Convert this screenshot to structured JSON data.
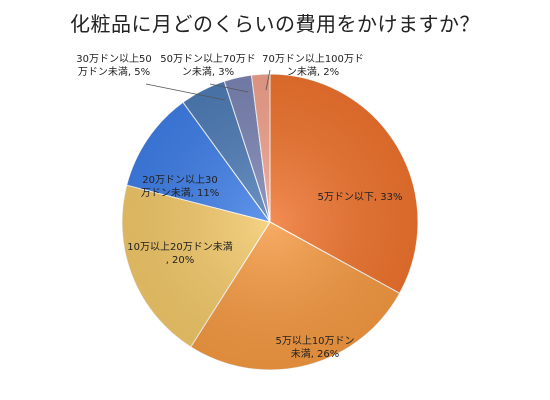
{
  "chart_data": {
    "type": "pie",
    "title": "化粧品に月どのくらいの費用をかけますか？",
    "slices": [
      {
        "label": "5万ドン以下",
        "value": 33,
        "value_label": "33%",
        "color": "#f0742e"
      },
      {
        "label": "5万以上10万ドン未満",
        "value": 26,
        "value_label": "26%",
        "color": "#f69a42"
      },
      {
        "label": "10万以上20万ドン未満",
        "value": 20,
        "value_label": "20%",
        "color": "#f3c96a"
      },
      {
        "label": "20万ドン以上30万ドン未満",
        "value": 11,
        "value_label": "11%",
        "color": "#3f7fe8"
      },
      {
        "label": "30万ドン以上50万ドン未満",
        "value": 5,
        "value_label": "5%",
        "color": "#4f7db8"
      },
      {
        "label": "50万ドン以上70万ドン未満",
        "value": 3,
        "value_label": "3%",
        "color": "#7c86b5"
      },
      {
        "label": "70万ドン以上100万ドン未満",
        "value": 2,
        "value_label": "2%",
        "color": "#f3a38e"
      }
    ],
    "start": "top",
    "direction": "clockwise",
    "legend": "none"
  }
}
